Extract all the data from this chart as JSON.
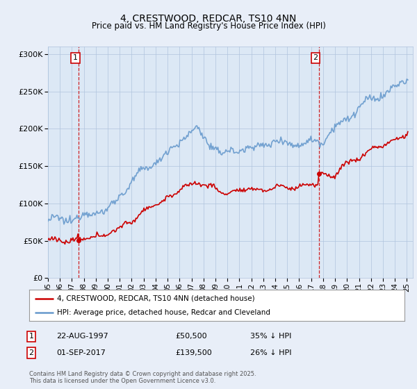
{
  "title": "4, CRESTWOOD, REDCAR, TS10 4NN",
  "subtitle": "Price paid vs. HM Land Registry's House Price Index (HPI)",
  "legend_line1": "4, CRESTWOOD, REDCAR, TS10 4NN (detached house)",
  "legend_line2": "HPI: Average price, detached house, Redcar and Cleveland",
  "annotation1_label": "1",
  "annotation1_date": "22-AUG-1997",
  "annotation1_price": "£50,500",
  "annotation1_hpi": "35% ↓ HPI",
  "annotation2_label": "2",
  "annotation2_date": "01-SEP-2017",
  "annotation2_price": "£139,500",
  "annotation2_hpi": "26% ↓ HPI",
  "footer": "Contains HM Land Registry data © Crown copyright and database right 2025.\nThis data is licensed under the Open Government Licence v3.0.",
  "ylim": [
    0,
    310000
  ],
  "yticks": [
    0,
    50000,
    100000,
    150000,
    200000,
    250000,
    300000
  ],
  "red_color": "#cc0000",
  "blue_color": "#6699cc",
  "vline_color": "#cc0000",
  "background_color": "#e8eef8",
  "plot_bg_color": "#dce8f5",
  "grid_color": "#b0c4de",
  "title_fontsize": 10,
  "subtitle_fontsize": 8.5
}
